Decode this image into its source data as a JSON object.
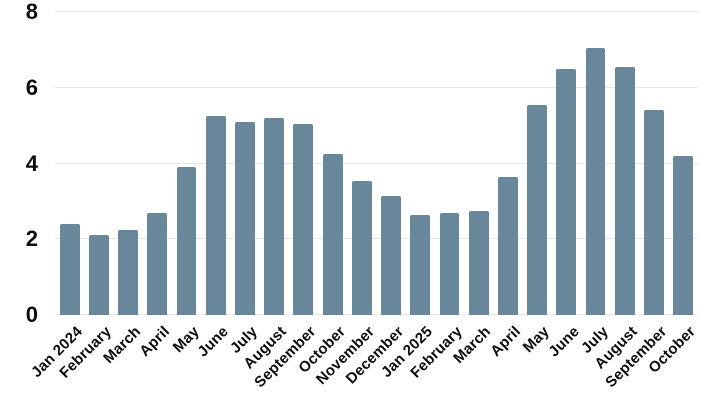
{
  "chart_data": {
    "type": "bar",
    "title": "",
    "xlabel": "",
    "ylabel": "",
    "categories": [
      "Jan 2024",
      "February",
      "March",
      "April",
      "May",
      "June",
      "July",
      "August",
      "September",
      "October",
      "November",
      "December",
      "Jan 2025",
      "February",
      "March",
      "April",
      "May",
      "June",
      "July",
      "August",
      "September",
      "October"
    ],
    "values": [
      2.4,
      2.1,
      2.25,
      2.7,
      3.9,
      5.25,
      5.1,
      5.2,
      5.05,
      4.25,
      3.55,
      3.15,
      2.65,
      2.7,
      2.75,
      3.65,
      5.55,
      6.5,
      7.05,
      6.55,
      5.4,
      4.2
    ],
    "ylim": [
      0,
      8
    ],
    "yticks": [
      0,
      2,
      4,
      6,
      8
    ],
    "grid": true,
    "legend": "none",
    "bar_color": "#68879b",
    "gridline_color": "#e7e7e7",
    "label_color": "#0c0c0c"
  }
}
